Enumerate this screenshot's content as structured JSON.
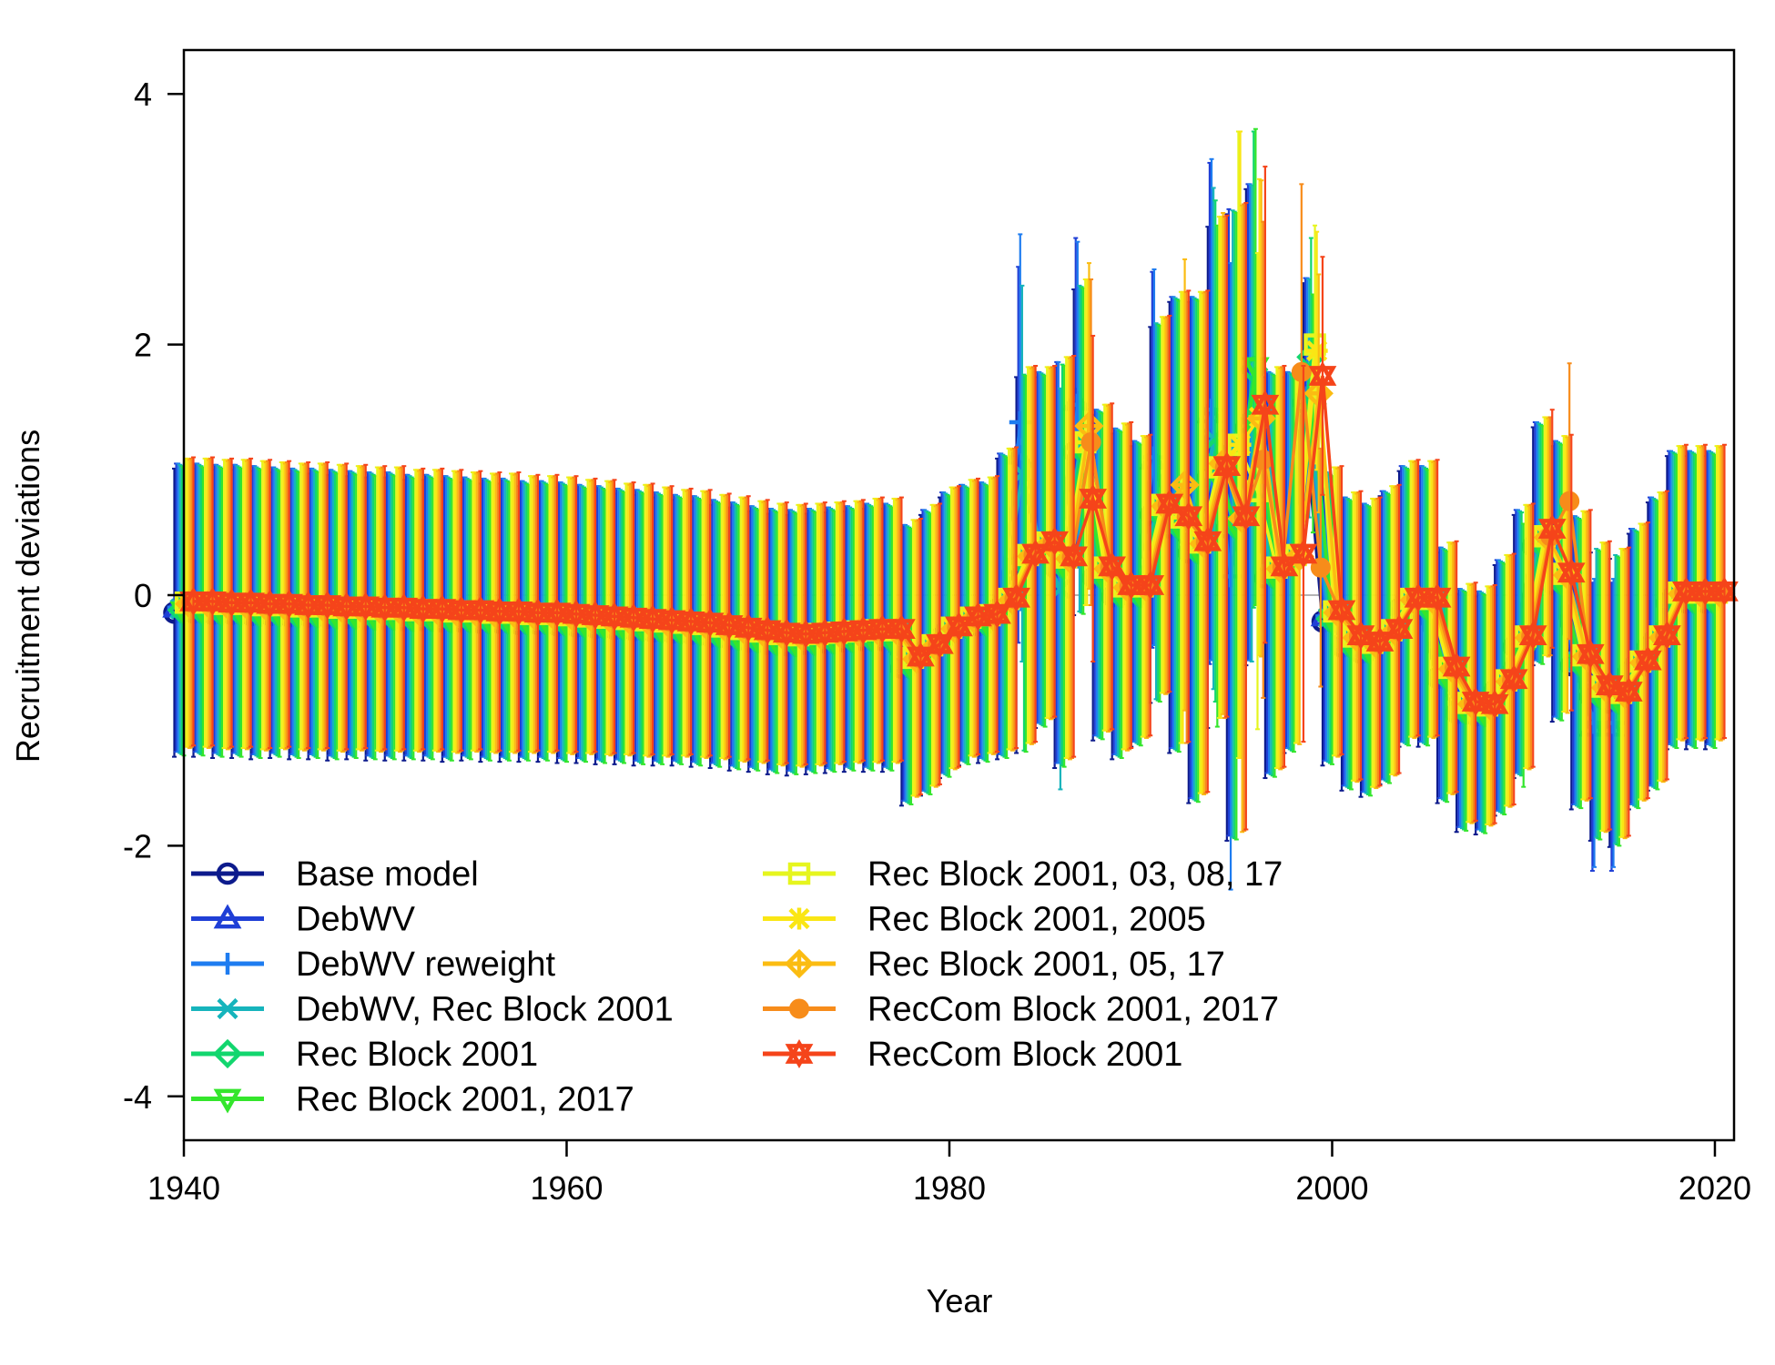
{
  "chart_data": {
    "type": "scatter",
    "xlabel": "Year",
    "ylabel": "Recruitment deviations",
    "xlim": [
      1940,
      2021
    ],
    "ylim": [
      -4.35,
      4.35
    ],
    "x_ticks": [
      "1940",
      "1960",
      "1980",
      "2000",
      "2020"
    ],
    "y_ticks": [
      "-4",
      "-2",
      "0",
      "2",
      "4"
    ],
    "reference_line_y": 0,
    "legend_location": "bottom-left, two columns",
    "x": [
      1940,
      1941,
      1942,
      1943,
      1944,
      1945,
      1946,
      1947,
      1948,
      1949,
      1950,
      1951,
      1952,
      1953,
      1954,
      1955,
      1956,
      1957,
      1958,
      1959,
      1960,
      1961,
      1962,
      1963,
      1964,
      1965,
      1966,
      1967,
      1968,
      1969,
      1970,
      1971,
      1972,
      1973,
      1974,
      1975,
      1976,
      1977,
      1978,
      1979,
      1980,
      1981,
      1982,
      1983,
      1984,
      1985,
      1986,
      1987,
      1988,
      1989,
      1990,
      1991,
      1992,
      1993,
      1994,
      1995,
      1996,
      1997,
      1998,
      1999,
      2000,
      2001,
      2002,
      2003,
      2004,
      2005,
      2006,
      2007,
      2008,
      2009,
      2010,
      2011,
      2012,
      2013,
      2014,
      2015,
      2016,
      2017,
      2018,
      2019,
      2020
    ],
    "representative_values": [
      -0.08,
      -0.08,
      -0.09,
      -0.09,
      -0.1,
      -0.1,
      -0.11,
      -0.11,
      -0.12,
      -0.12,
      -0.13,
      -0.13,
      -0.14,
      -0.14,
      -0.15,
      -0.15,
      -0.16,
      -0.16,
      -0.17,
      -0.17,
      -0.18,
      -0.19,
      -0.2,
      -0.21,
      -0.22,
      -0.23,
      -0.24,
      -0.25,
      -0.27,
      -0.29,
      -0.31,
      -0.33,
      -0.34,
      -0.33,
      -0.32,
      -0.31,
      -0.3,
      -0.3,
      -0.52,
      -0.42,
      -0.28,
      -0.2,
      -0.18,
      -0.05,
      0.3,
      0.4,
      0.28,
      1.2,
      0.2,
      0.05,
      0.05,
      0.7,
      0.6,
      0.4,
      1.0,
      0.6,
      1.4,
      0.2,
      0.3,
      1.6,
      -0.15,
      -0.35,
      -0.4,
      -0.3,
      -0.05,
      -0.05,
      -0.6,
      -0.88,
      -0.9,
      -0.7,
      -0.35,
      0.45,
      0.15,
      -0.5,
      -0.75,
      -0.8,
      -0.55,
      -0.35,
      0,
      0,
      0
    ],
    "errors": [
      1.15,
      1.15,
      1.15,
      1.15,
      1.15,
      1.14,
      1.14,
      1.14,
      1.14,
      1.13,
      1.13,
      1.13,
      1.12,
      1.12,
      1.12,
      1.11,
      1.11,
      1.11,
      1.1,
      1.1,
      1.1,
      1.09,
      1.09,
      1.08,
      1.08,
      1.07,
      1.06,
      1.06,
      1.05,
      1.05,
      1.04,
      1.04,
      1.04,
      1.04,
      1.04,
      1.04,
      1.05,
      1.05,
      1.1,
      1.12,
      1.12,
      1.1,
      1.1,
      1.2,
      1.5,
      1.4,
      1.6,
      1.3,
      1.3,
      1.3,
      1.2,
      1.5,
      1.8,
      2.0,
      2.0,
      2.5,
      1.9,
      1.6,
      1.5,
      0.95,
      1.15,
      1.15,
      1.15,
      1.15,
      1.1,
      1.1,
      1.0,
      0.95,
      0.95,
      1.0,
      1.05,
      0.95,
      1.1,
      1.15,
      1.15,
      1.15,
      1.1,
      1.15,
      1.17,
      1.17,
      1.17
    ],
    "series": [
      {
        "name": "Base model",
        "color": "#0c1a8c",
        "marker": "circle",
        "offset": -0.06,
        "values": []
      },
      {
        "name": "DebWV",
        "color": "#1f3fd6",
        "marker": "triangle-up",
        "offset": -0.02,
        "values": [],
        "overrides": {
          "1984": 1.12,
          "1987": 1.55,
          "1991": 1.08,
          "1994": 1.45,
          "2014": -1.05,
          "2015": -1.05
        }
      },
      {
        "name": "DebWV reweight",
        "color": "#1e7cf0",
        "marker": "plus",
        "offset": -0.02,
        "values": [],
        "overrides": {
          "1984": 1.38,
          "1987": 1.52,
          "1991": 1.1,
          "1994": 1.48,
          "1995": 0.15,
          "2014": -1.02,
          "2015": -1.02
        }
      },
      {
        "name": "DebWV, Rec Block 2001",
        "color": "#16b4bc",
        "marker": "x",
        "offset": -0.03,
        "values": [],
        "overrides": {
          "1984": 0.97,
          "1986": 0.05,
          "1994": 1.25
        }
      },
      {
        "name": "Rec Block 2001",
        "color": "#12d66e",
        "marker": "diamond",
        "offset": -0.04,
        "values": [],
        "overrides": {
          "1994": 1.15,
          "1996": 1.8,
          "1999": 1.9
        }
      },
      {
        "name": "Rec Block 2001, 2017",
        "color": "#34e62c",
        "marker": "triangle-down",
        "offset": -0.05,
        "values": [],
        "overrides": {
          "1996": 1.82,
          "1999": 1.45,
          "2010": -0.48
        }
      },
      {
        "name": "Rec Block 2001, 03, 08, 17",
        "color": "#e6f51e",
        "marker": "square",
        "offset": 0.02,
        "values": [],
        "overrides": {
          "1995": 1.2,
          "1996": 0.83,
          "1999": 2.0
        }
      },
      {
        "name": "Rec Block 2001, 2005",
        "color": "#fae614",
        "marker": "asterisk",
        "offset": 0.02,
        "values": [],
        "overrides": {
          "1995": 1.2,
          "1999": 1.95
        }
      },
      {
        "name": "Rec Block 2001, 05, 17",
        "color": "#fbbc12",
        "marker": "diamond-plus",
        "offset": 0.01,
        "values": [],
        "overrides": {
          "1987": 1.35,
          "1992": 0.88,
          "1994": 1.05
        }
      },
      {
        "name": "RecCom Block 2001, 2017",
        "color": "#f78c1a",
        "marker": "circle-filled",
        "offset": 0.02,
        "values": [],
        "overrides": {
          "1996": 1.08,
          "1998": 1.78,
          "1999": 0.22,
          "2012": 0.75
        }
      },
      {
        "name": "RecCom Block 2001",
        "color": "#f5441a",
        "marker": "star-of-david",
        "offset": 0.03,
        "values": [],
        "overrides": {
          "1987": 0.77,
          "1996": 1.52,
          "1999": 1.75,
          "2011": 0.53
        }
      }
    ]
  }
}
